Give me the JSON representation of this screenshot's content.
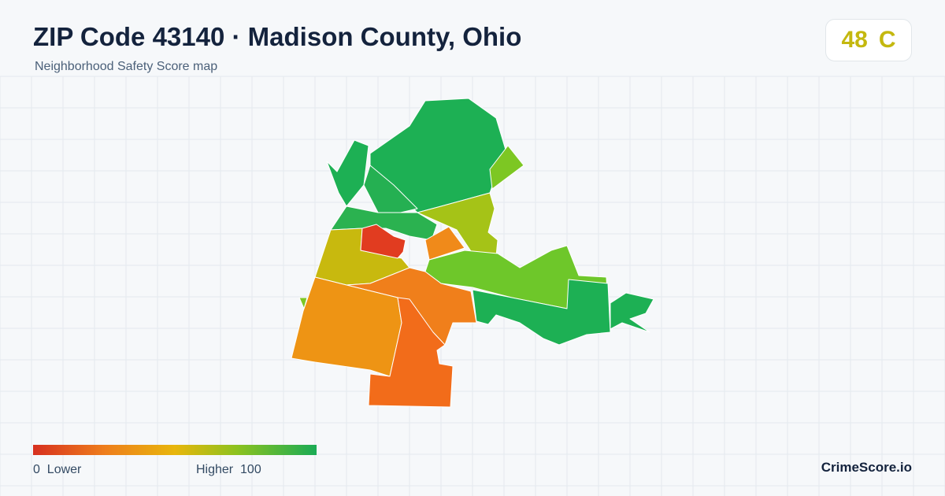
{
  "header": {
    "title": "ZIP Code 43140 · Madison County, Ohio",
    "subtitle": "Neighborhood Safety Score map"
  },
  "score": {
    "value": 48,
    "grade": "C"
  },
  "legend": {
    "min": 0,
    "min_label": "Lower",
    "max_label": "Higher",
    "max": 100
  },
  "brand": "CrimeScore.io"
}
